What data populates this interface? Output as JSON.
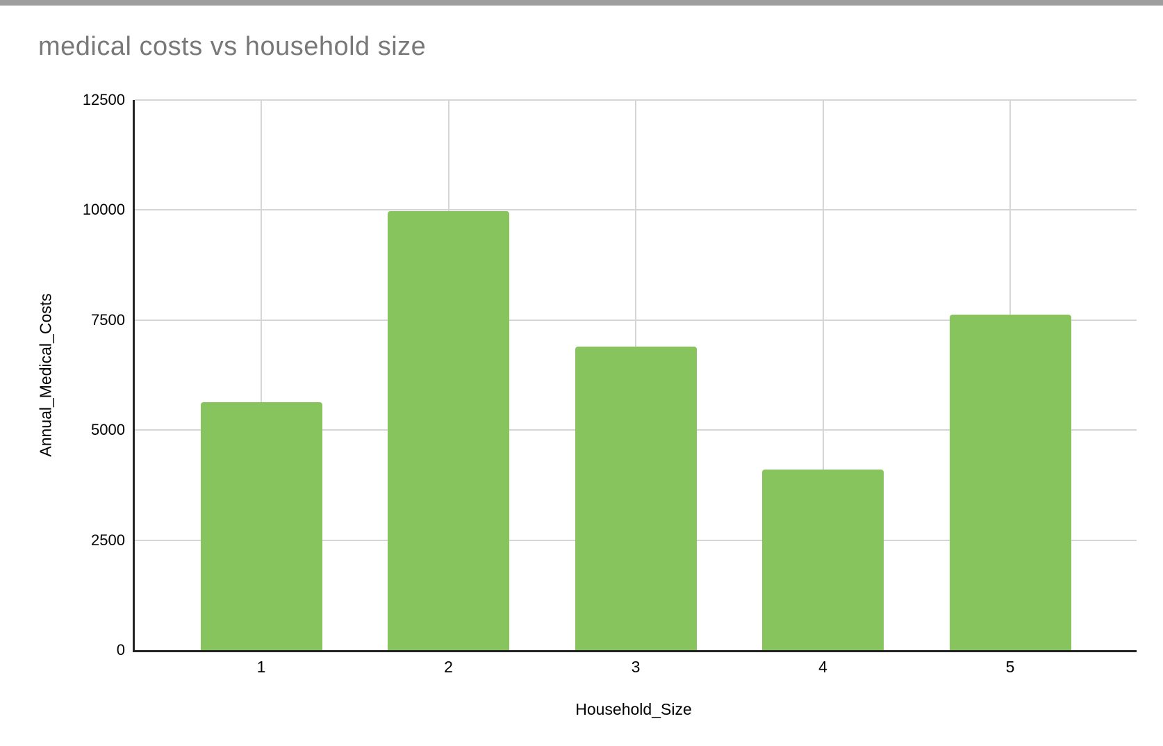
{
  "chart_data": {
    "type": "bar",
    "title": "medical costs vs household size",
    "xlabel": "Household_Size",
    "ylabel": "Annual_Medical_Costs",
    "categories": [
      "1",
      "2",
      "3",
      "4",
      "5"
    ],
    "values": [
      5630,
      9970,
      6900,
      4110,
      7630
    ],
    "ylim": [
      0,
      12500
    ],
    "yticks": [
      0,
      2500,
      5000,
      7500,
      10000,
      12500
    ],
    "grid": true,
    "legend_position": "none",
    "colors": {
      "bar": "#88c45e",
      "title_text": "#787878",
      "axis_text": "#000000",
      "gridline": "#d6d6d6",
      "axis_line": "#222222",
      "top_strip": "#9e9e9e"
    }
  }
}
